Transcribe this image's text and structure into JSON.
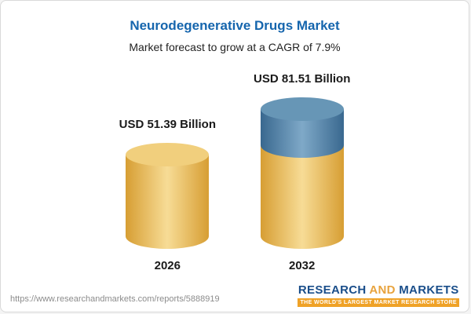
{
  "chart_data": {
    "type": "bar",
    "title": "Neurodegenerative Drugs Market",
    "subtitle": "Market forecast to grow at a CAGR of 7.9%",
    "categories": [
      "2026",
      "2032"
    ],
    "values": [
      51.39,
      81.51
    ],
    "value_labels": [
      "USD 51.39 Billion",
      "USD 81.51 Billion"
    ],
    "unit": "USD Billion",
    "cagr": "7.9%",
    "legend_position": "none",
    "grid": false,
    "colors": {
      "base_segment": "#F2C757",
      "growth_segment": "#4A7FA8",
      "title_accent": "#1565AD"
    }
  },
  "footer": {
    "url": "https://www.researchandmarkets.com/reports/5888919",
    "logo": {
      "research": "RESEARCH",
      "and": "AND",
      "markets": "MARKETS",
      "tagline": "THE WORLD'S LARGEST MARKET RESEARCH STORE"
    }
  }
}
